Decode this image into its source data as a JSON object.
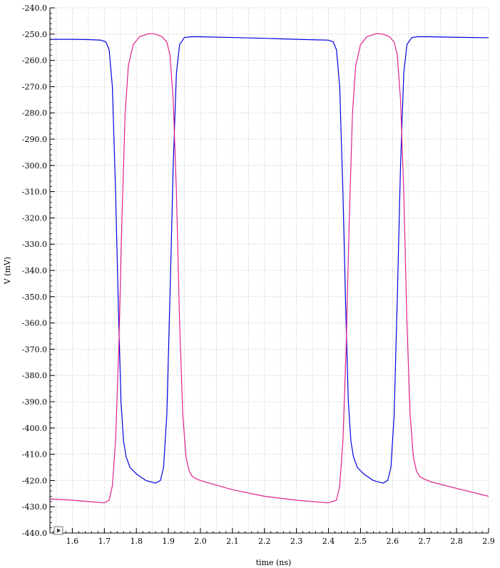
{
  "chart_data": {
    "type": "line",
    "title": "",
    "xlabel": "time (ns)",
    "ylabel": "V (mV)",
    "xlim": [
      1.53,
      2.9
    ],
    "ylim": [
      -440.0,
      -240.0
    ],
    "x_ticks": [
      "1.6",
      "1.7",
      "1.8",
      "1.9",
      "2.0",
      "2.1",
      "2.2",
      "2.3",
      "2.4",
      "2.5",
      "2.6",
      "2.7",
      "2.8",
      "2.9"
    ],
    "x_tick_values": [
      1.6,
      1.7,
      1.8,
      1.9,
      2.0,
      2.1,
      2.2,
      2.3,
      2.4,
      2.5,
      2.6,
      2.7,
      2.8,
      2.9
    ],
    "y_ticks": [
      "-240.0",
      "-250.0",
      "-260.0",
      "-270.0",
      "-280.0",
      "-290.0",
      "-300.0",
      "-310.0",
      "-320.0",
      "-330.0",
      "-340.0",
      "-350.0",
      "-360.0",
      "-370.0",
      "-380.0",
      "-390.0",
      "-400.0",
      "-410.0",
      "-420.0",
      "-430.0",
      "-440.0"
    ],
    "y_tick_values": [
      -240,
      -250,
      -260,
      -270,
      -280,
      -290,
      -300,
      -310,
      -320,
      -330,
      -340,
      -350,
      -360,
      -370,
      -380,
      -390,
      -400,
      -410,
      -420,
      -430,
      -440
    ],
    "grid": true,
    "series": [
      {
        "color": "#0000e0",
        "x": [
          1.53,
          1.6,
          1.65,
          1.69,
          1.705,
          1.715,
          1.725,
          1.735,
          1.745,
          1.752,
          1.76,
          1.768,
          1.78,
          1.8,
          1.83,
          1.86,
          1.875,
          1.885,
          1.895,
          1.905,
          1.915,
          1.925,
          1.935,
          1.95,
          1.97,
          2.0,
          2.1,
          2.2,
          2.3,
          2.4,
          2.415,
          2.425,
          2.435,
          2.445,
          2.455,
          2.462,
          2.47,
          2.478,
          2.49,
          2.51,
          2.54,
          2.57,
          2.585,
          2.595,
          2.605,
          2.615,
          2.625,
          2.635,
          2.645,
          2.66,
          2.68,
          2.71,
          2.8,
          2.9
        ],
        "y": [
          -252.0,
          -252.0,
          -252.1,
          -252.3,
          -253.0,
          -256.0,
          -270.0,
          -310.0,
          -360.0,
          -390.0,
          -405.0,
          -411.0,
          -415.0,
          -417.5,
          -420.0,
          -421.0,
          -420.0,
          -415.0,
          -395.0,
          -350.0,
          -300.0,
          -265.0,
          -254.0,
          -251.3,
          -251.0,
          -251.0,
          -251.3,
          -251.6,
          -252.0,
          -252.3,
          -253.0,
          -256.0,
          -270.0,
          -310.0,
          -360.0,
          -390.0,
          -405.0,
          -411.0,
          -415.0,
          -417.5,
          -420.0,
          -421.0,
          -420.0,
          -415.0,
          -395.0,
          -350.0,
          -300.0,
          -265.0,
          -254.0,
          -251.3,
          -251.0,
          -251.0,
          -251.2,
          -251.4
        ]
      },
      {
        "color": "#e0208c",
        "x": [
          1.53,
          1.6,
          1.65,
          1.7,
          1.715,
          1.725,
          1.735,
          1.745,
          1.755,
          1.765,
          1.775,
          1.79,
          1.81,
          1.84,
          1.86,
          1.88,
          1.895,
          1.905,
          1.915,
          1.925,
          1.935,
          1.945,
          1.955,
          1.965,
          1.975,
          1.99,
          2.0,
          2.1,
          2.2,
          2.3,
          2.4,
          2.425,
          2.435,
          2.445,
          2.455,
          2.465,
          2.475,
          2.485,
          2.5,
          2.52,
          2.55,
          2.57,
          2.59,
          2.605,
          2.615,
          2.625,
          2.635,
          2.645,
          2.655,
          2.665,
          2.675,
          2.685,
          2.7,
          2.72,
          2.8,
          2.9
        ],
        "y": [
          -427.0,
          -427.5,
          -428.0,
          -428.5,
          -427.5,
          -422.0,
          -405.0,
          -370.0,
          -320.0,
          -280.0,
          -262.0,
          -254.0,
          -251.0,
          -249.8,
          -250.0,
          -251.0,
          -253.0,
          -258.0,
          -275.0,
          -310.0,
          -360.0,
          -395.0,
          -411.0,
          -416.5,
          -418.5,
          -419.5,
          -420.0,
          -423.5,
          -426.0,
          -427.5,
          -428.5,
          -427.5,
          -422.0,
          -405.0,
          -370.0,
          -320.0,
          -280.0,
          -262.0,
          -254.0,
          -251.0,
          -249.8,
          -250.0,
          -251.0,
          -253.0,
          -258.0,
          -275.0,
          -310.0,
          -360.0,
          -395.0,
          -411.0,
          -416.5,
          -418.5,
          -419.5,
          -420.5,
          -423.0,
          -426.0
        ]
      }
    ]
  }
}
